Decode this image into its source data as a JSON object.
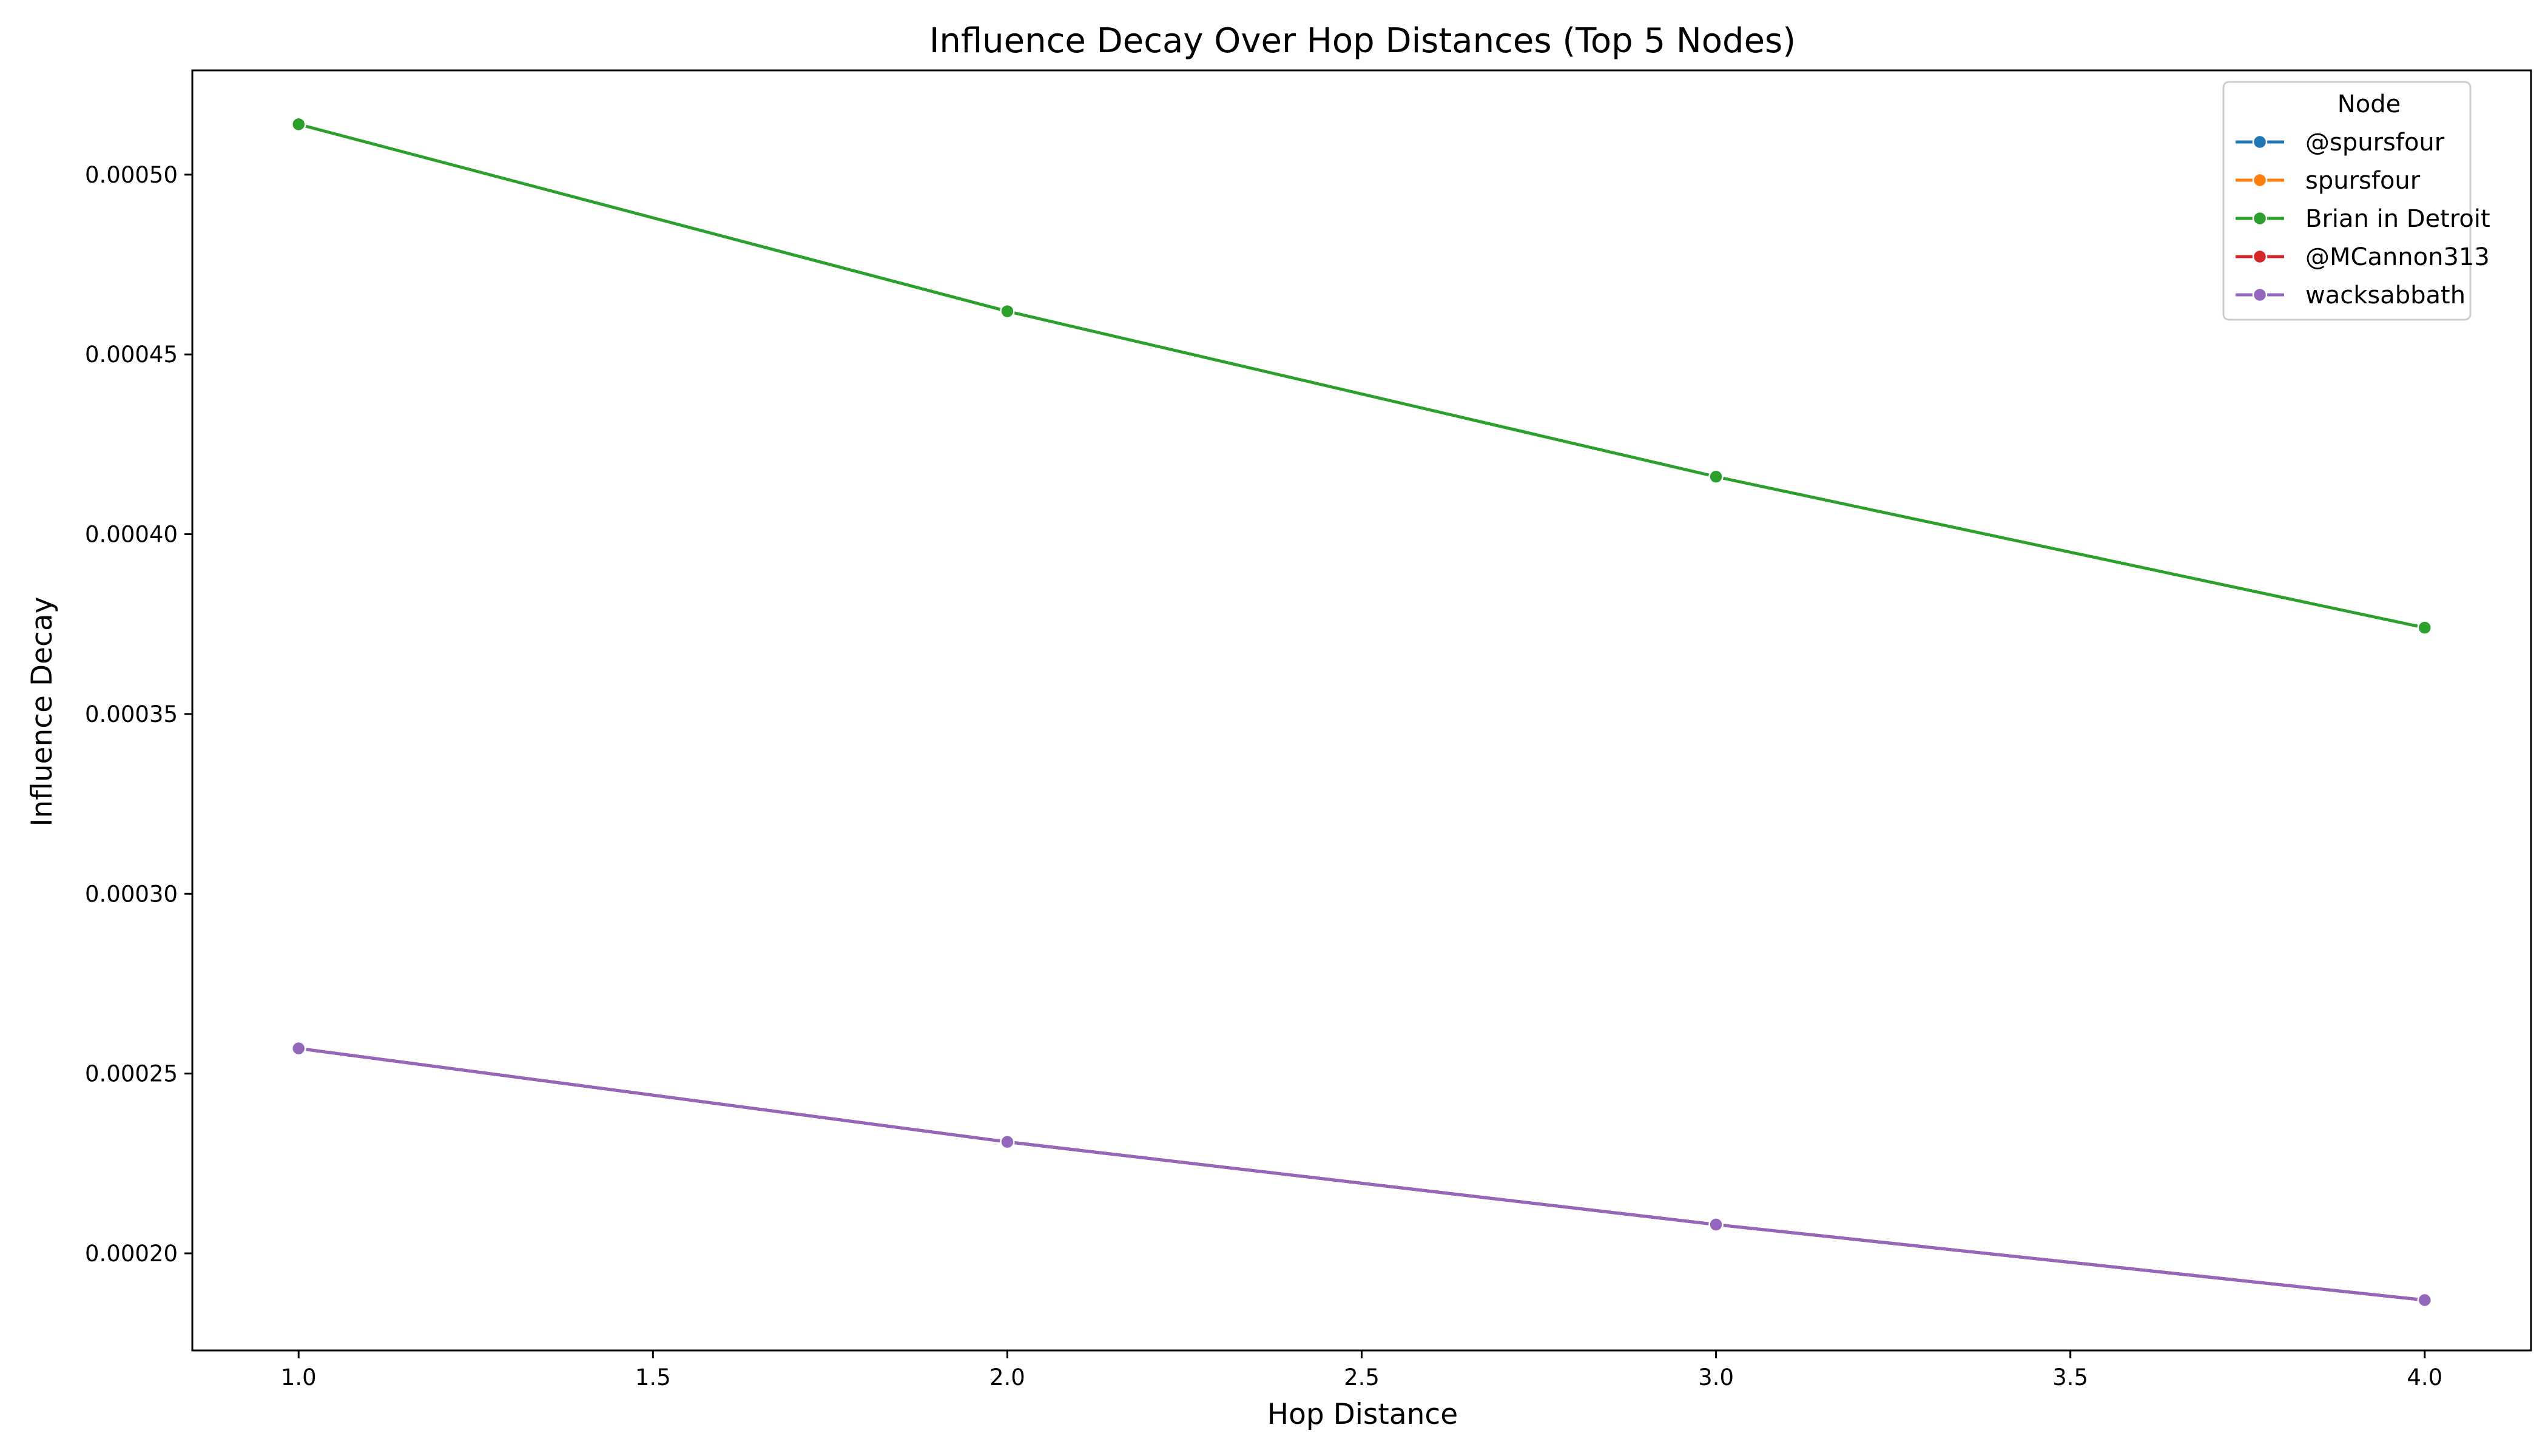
{
  "chart_data": {
    "type": "line",
    "title": "Influence Decay Over Hop Distances (Top 5 Nodes)",
    "xlabel": "Hop Distance",
    "ylabel": "Influence Decay",
    "xlim": [
      0.85,
      4.15
    ],
    "ylim": [
      0.000173,
      0.000529
    ],
    "x": [
      1.0,
      2.0,
      3.0,
      4.0
    ],
    "xticks": [
      1.0,
      1.5,
      2.0,
      2.5,
      3.0,
      3.5,
      4.0
    ],
    "xtick_labels": [
      "1.0",
      "1.5",
      "2.0",
      "2.5",
      "3.0",
      "3.5",
      "4.0"
    ],
    "yticks": [
      0.0002,
      0.00025,
      0.0003,
      0.00035,
      0.0004,
      0.00045,
      0.0005
    ],
    "ytick_labels": [
      "0.00020",
      "0.00025",
      "0.00030",
      "0.00035",
      "0.00040",
      "0.00045",
      "0.00050"
    ],
    "grid": false,
    "legend": {
      "title": "Node",
      "placement": "top-right"
    },
    "series": [
      {
        "name": "@spursfour",
        "color": "#1f77b4",
        "values": [
          0.000257,
          0.000231,
          0.000208,
          0.000187
        ]
      },
      {
        "name": "spursfour",
        "color": "#ff7f0e",
        "values": [
          0.000257,
          0.000231,
          0.000208,
          0.000187
        ]
      },
      {
        "name": "Brian in Detroit",
        "color": "#2ca02c",
        "values": [
          0.000514,
          0.000462,
          0.000416,
          0.000374
        ]
      },
      {
        "name": "@MCannon313",
        "color": "#d62728",
        "values": [
          0.000257,
          0.000231,
          0.000208,
          0.000187
        ]
      },
      {
        "name": "wacksabbath",
        "color": "#9467bd",
        "values": [
          0.000257,
          0.000231,
          0.000208,
          0.000187
        ]
      }
    ]
  }
}
